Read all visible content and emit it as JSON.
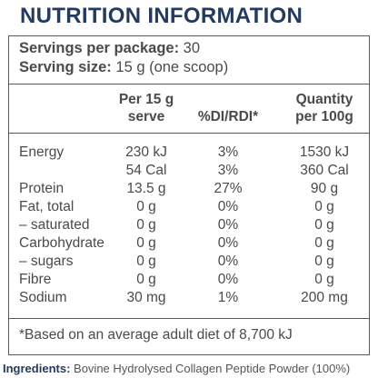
{
  "title": "NUTRITION INFORMATION",
  "servings": {
    "per_package_label": "Servings per package:",
    "per_package_value": "30",
    "serving_size_label": "Serving size:",
    "serving_size_value": "15 g (one scoop)"
  },
  "columns": {
    "serve": [
      "Per 15 g",
      "serve"
    ],
    "di": [
      "%DI/RDI*"
    ],
    "quantity": [
      "Quantity",
      "per 100g"
    ]
  },
  "rows": [
    {
      "name": "Energy",
      "serve": "230 kJ",
      "di": "3%",
      "quantity": "1530 kJ"
    },
    {
      "name": "",
      "serve": "54 Cal",
      "di": "3%",
      "quantity": "360 Cal"
    },
    {
      "name": "Protein",
      "serve": "13.5 g",
      "di": "27%",
      "quantity": "90 g"
    },
    {
      "name": "Fat, total",
      "serve": "0 g",
      "di": "0%",
      "quantity": "0 g"
    },
    {
      "name": "– saturated",
      "serve": "0 g",
      "di": "0%",
      "quantity": "0 g"
    },
    {
      "name": "Carbohydrate",
      "serve": "0 g",
      "di": "0%",
      "quantity": "0 g"
    },
    {
      "name": "– sugars",
      "serve": "0 g",
      "di": "0%",
      "quantity": "0 g"
    },
    {
      "name": "Fibre",
      "serve": "0 g",
      "di": "0%",
      "quantity": "0 g"
    },
    {
      "name": "Sodium",
      "serve": "30 mg",
      "di": "1%",
      "quantity": "200 mg"
    }
  ],
  "footnote": "*Based on an average adult diet of 8,700 kJ",
  "ingredients": {
    "label": "Ingredients:",
    "text": "Bovine Hydrolysed Collagen Peptide Powder (100%)"
  },
  "colors": {
    "title": "#243a5e",
    "text": "#4a4a4a",
    "border": "#5a5a5a"
  }
}
